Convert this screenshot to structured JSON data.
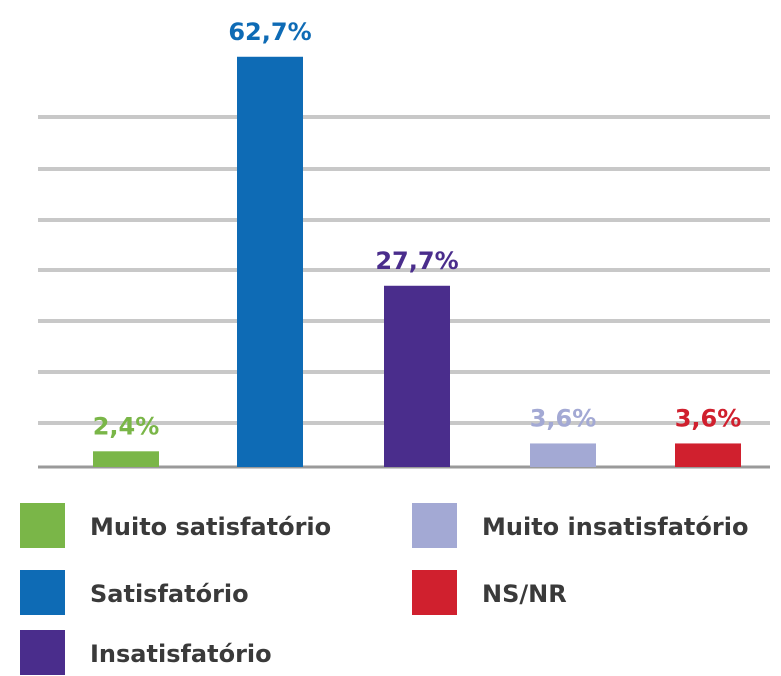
{
  "chart_data": {
    "type": "bar",
    "categories": [
      "Muito satisfatório",
      "Satisfatório",
      "Insatisfatório",
      "Muito insatisfatório",
      "NS/NR"
    ],
    "values": [
      2.4,
      62.7,
      27.7,
      3.6,
      3.6
    ],
    "value_labels": [
      "2,4%",
      "62,7%",
      "27,7%",
      "3,6%",
      "3,6%"
    ],
    "colors": [
      "#7ab648",
      "#0e6bb5",
      "#4a2d8c",
      "#a3a9d4",
      "#d0202e"
    ],
    "ylim": [
      0,
      70
    ],
    "grid": true
  }
}
